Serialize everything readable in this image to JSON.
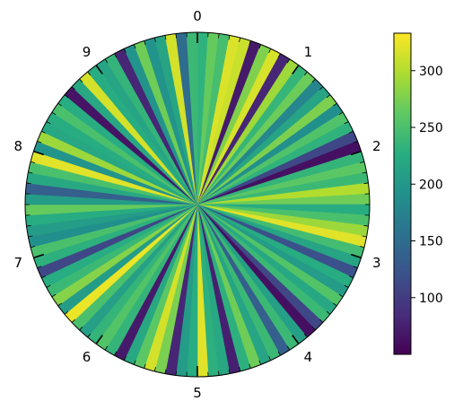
{
  "chart_data": {
    "type": "polar-bar",
    "title": "",
    "colormap": "viridis",
    "direction": "clockwise",
    "zero_location": "top",
    "theta_range": [
      0,
      10
    ],
    "theta_major_ticks": [
      "0",
      "1",
      "2",
      "3",
      "4",
      "5",
      "6",
      "7",
      "8",
      "9"
    ],
    "theta_minor_ticks_per_major": 10,
    "colorbar": {
      "ticks": [
        "100",
        "150",
        "200",
        "250",
        "300"
      ],
      "tick_values": [
        100,
        150,
        200,
        250,
        300
      ],
      "range": [
        50,
        333
      ]
    },
    "values": [
      232,
      265,
      247,
      318,
      310,
      70,
      277,
      316,
      80,
      291,
      236,
      268,
      180,
      215,
      276,
      190,
      253,
      232,
      110,
      62,
      235,
      260,
      240,
      300,
      270,
      225,
      250,
      290,
      320,
      245,
      215,
      120,
      225,
      205,
      255,
      220,
      240,
      110,
      62,
      210,
      240,
      135,
      240,
      215,
      270,
      230,
      75,
      220,
      230,
      320,
      225,
      205,
      80,
      275,
      315,
      260,
      220,
      70,
      235,
      255,
      235,
      210,
      250,
      325,
      205,
      280,
      240,
      225,
      110,
      230,
      250,
      190,
      205,
      225,
      265,
      205,
      135,
      220,
      250,
      320,
      195,
      290,
      220,
      225,
      250,
      225,
      65,
      220,
      315,
      225,
      215,
      235,
      80,
      195,
      270,
      195,
      215,
      315,
      150,
      240
    ]
  }
}
